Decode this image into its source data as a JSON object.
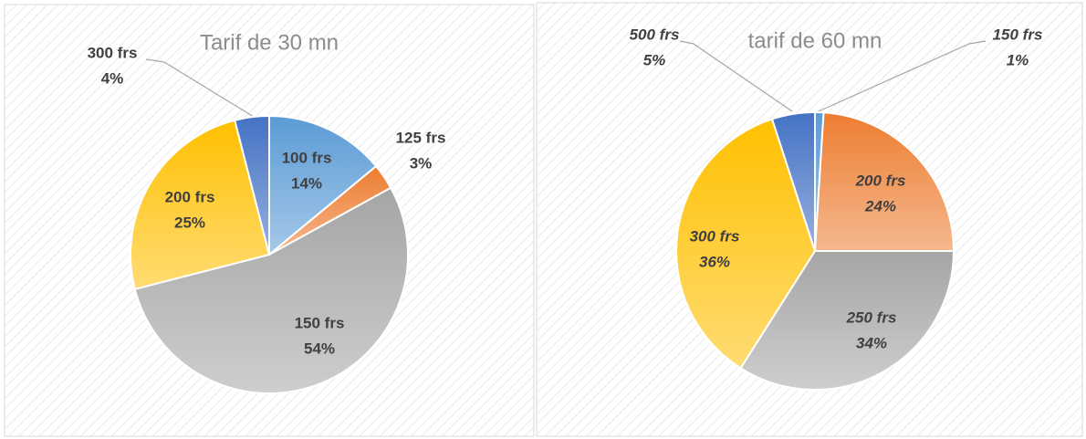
{
  "chart_data": [
    {
      "type": "pie",
      "title": "Tarif de 30 mn",
      "categories": [
        "100 frs",
        "125 frs",
        "150 frs",
        "200 frs",
        "300 frs"
      ],
      "values": [
        14,
        3,
        54,
        25,
        4
      ],
      "value_labels": [
        "14%",
        "3%",
        "54%",
        "25%",
        "4%"
      ],
      "colors": [
        "#5b9bd5",
        "#ed7d31",
        "#a5a5a5",
        "#ffc000",
        "#4472c4"
      ]
    },
    {
      "type": "pie",
      "title": "tarif de 60 mn",
      "categories": [
        "150 frs",
        "200 frs",
        "250 frs",
        "300 frs",
        "500 frs"
      ],
      "values": [
        1,
        24,
        34,
        36,
        5
      ],
      "value_labels": [
        "1%",
        "24%",
        "34%",
        "36%",
        "5%"
      ],
      "colors": [
        "#5b9bd5",
        "#ed7d31",
        "#a5a5a5",
        "#ffc000",
        "#4472c4"
      ]
    }
  ]
}
